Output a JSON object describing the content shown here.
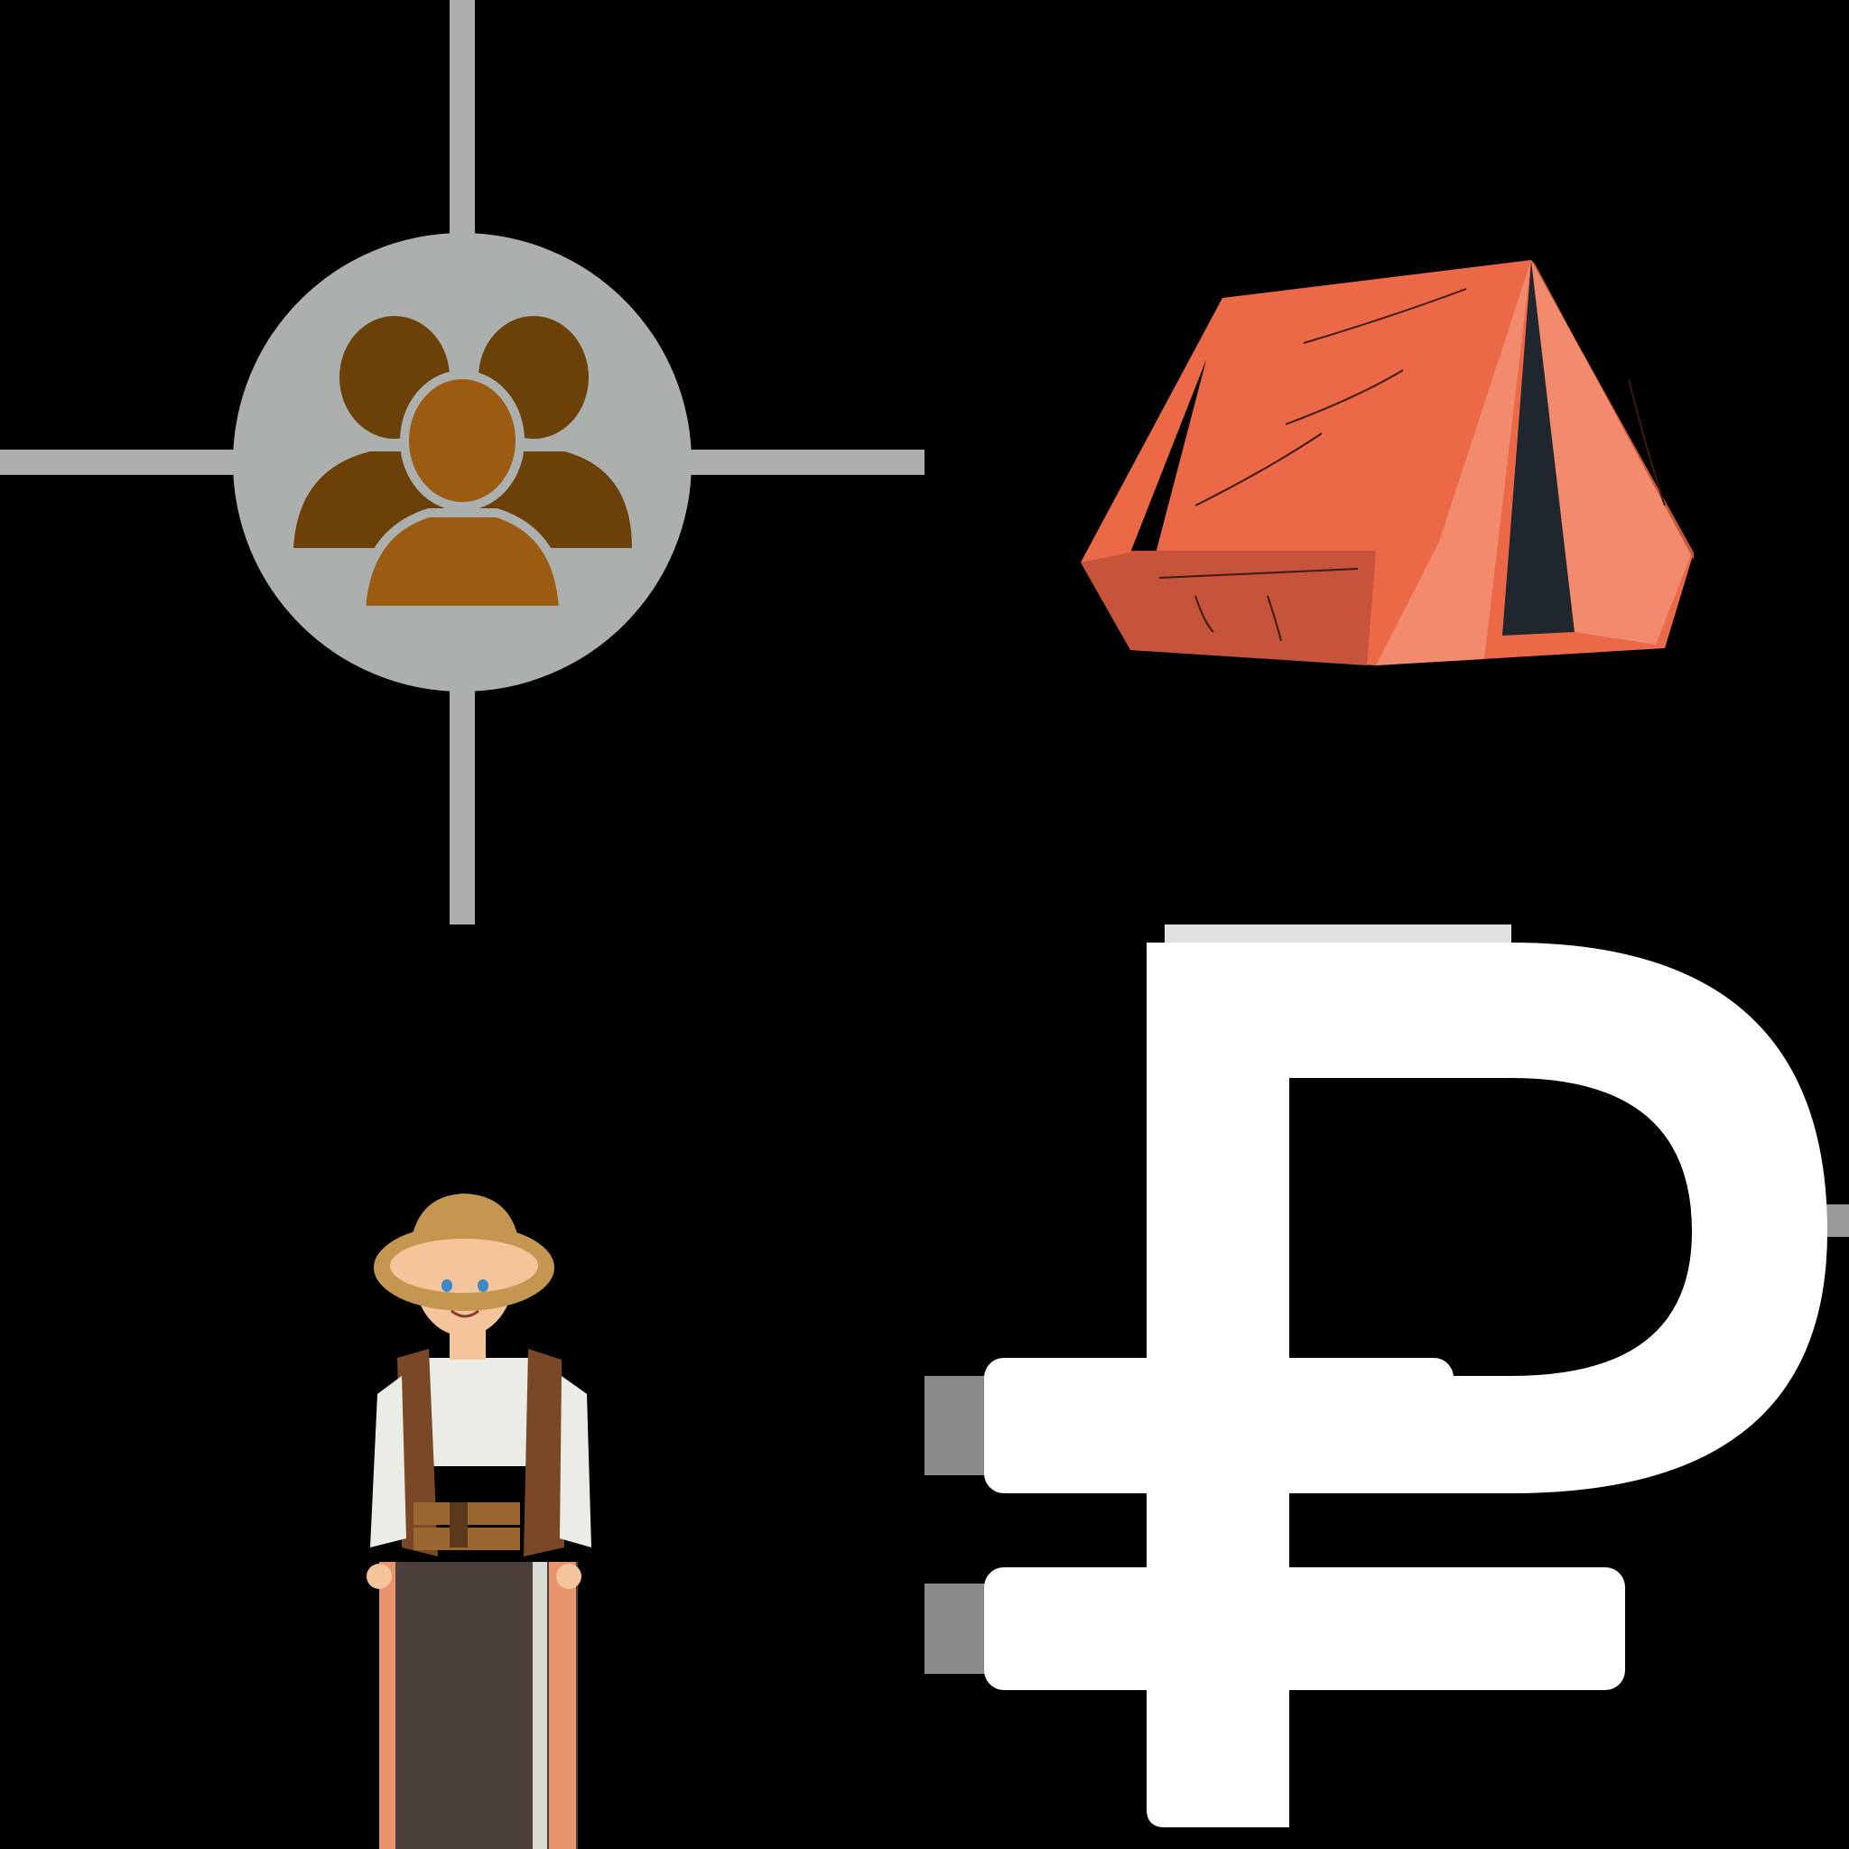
{
  "icons": [
    {
      "name": "people-network-icon",
      "colors": {
        "ring": "#abafae",
        "back_people": "#6b4108",
        "front_person": "#9b5b10"
      }
    },
    {
      "name": "tent-icon",
      "colors": {
        "main": "#ec6948",
        "side": "#c6543b",
        "light": "#f28a6e",
        "door": "#1f262d"
      }
    },
    {
      "name": "explorer-boy-icon",
      "colors": {
        "hat": "#c49650",
        "vest": "#7a4727",
        "shirt": "#eaece6",
        "pants": "#4c403c",
        "skin": "#f4c59b"
      }
    },
    {
      "name": "ruble-sign-icon",
      "colors": {
        "glyph": "#ffffff",
        "shadow": "#8a8a8a"
      }
    }
  ]
}
